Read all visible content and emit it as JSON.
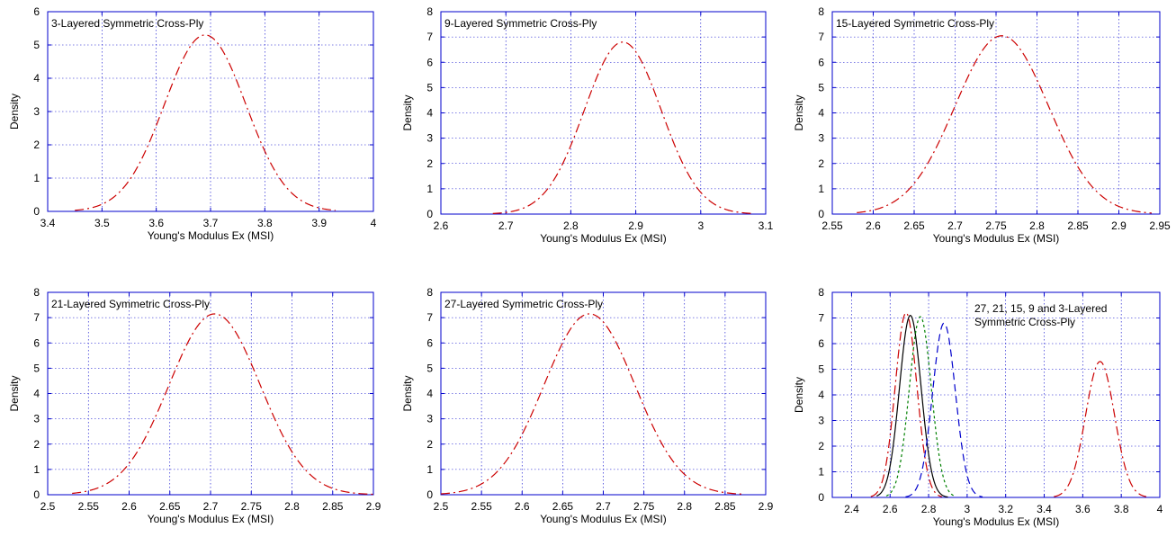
{
  "chart_data": [
    {
      "type": "line",
      "annotation": [
        "3-Layered Symmetric Cross-Ply"
      ],
      "xlabel": "Young's Modulus Ex (MSI)",
      "ylabel": "Density",
      "xlim": [
        3.4,
        4.0
      ],
      "ylim": [
        0,
        6
      ],
      "xticks": [
        "3.4",
        "3.5",
        "3.6",
        "3.7",
        "3.8",
        "3.9",
        "4"
      ],
      "yticks": [
        "0",
        "1",
        "2",
        "3",
        "4",
        "5",
        "6"
      ],
      "grid": true,
      "series": [
        {
          "color": "#cc0000",
          "dash": "10,4,2,4",
          "mean": 3.69,
          "peak": 5.3,
          "sd": 0.075,
          "range": [
            3.45,
            3.93
          ]
        }
      ]
    },
    {
      "type": "line",
      "annotation": [
        "9-Layered Symmetric Cross-Ply"
      ],
      "xlabel": "Young's Modulus Ex (MSI)",
      "ylabel": "Density",
      "xlim": [
        2.6,
        3.1
      ],
      "ylim": [
        0,
        8
      ],
      "xticks": [
        "2.6",
        "2.7",
        "2.8",
        "2.9",
        "3",
        "3.1"
      ],
      "yticks": [
        "0",
        "1",
        "2",
        "3",
        "4",
        "5",
        "6",
        "7",
        "8"
      ],
      "grid": true,
      "series": [
        {
          "color": "#cc0000",
          "dash": "10,4,2,4",
          "mean": 2.88,
          "peak": 6.8,
          "sd": 0.059,
          "range": [
            2.68,
            3.08
          ]
        }
      ]
    },
    {
      "type": "line",
      "annotation": [
        "15-Layered Symmetric Cross-Ply"
      ],
      "xlabel": "Young's Modulus Ex (MSI)",
      "ylabel": "Density",
      "xlim": [
        2.55,
        2.95
      ],
      "ylim": [
        0,
        8
      ],
      "xticks": [
        "2.55",
        "2.6",
        "2.65",
        "2.7",
        "2.75",
        "2.8",
        "2.85",
        "2.9",
        "2.95"
      ],
      "yticks": [
        "0",
        "1",
        "2",
        "3",
        "4",
        "5",
        "6",
        "7",
        "8"
      ],
      "grid": true,
      "series": [
        {
          "color": "#cc0000",
          "dash": "10,4,2,4",
          "mean": 2.757,
          "peak": 7.05,
          "sd": 0.057,
          "range": [
            2.58,
            2.94
          ]
        }
      ]
    },
    {
      "type": "line",
      "annotation": [
        "21-Layered Symmetric Cross-Ply"
      ],
      "xlabel": "Young's Modulus Ex (MSI)",
      "ylabel": "Density",
      "xlim": [
        2.5,
        2.9
      ],
      "ylim": [
        0,
        8
      ],
      "xticks": [
        "2.5",
        "2.55",
        "2.6",
        "2.65",
        "2.7",
        "2.75",
        "2.8",
        "2.85",
        "2.9"
      ],
      "yticks": [
        "0",
        "1",
        "2",
        "3",
        "4",
        "5",
        "6",
        "7",
        "8"
      ],
      "grid": true,
      "series": [
        {
          "color": "#cc0000",
          "dash": "10,4,2,4",
          "mean": 2.705,
          "peak": 7.15,
          "sd": 0.056,
          "range": [
            2.53,
            2.9
          ]
        }
      ]
    },
    {
      "type": "line",
      "annotation": [
        "27-Layered Symmetric Cross-Ply"
      ],
      "xlabel": "Young's Modulus Ex (MSI)",
      "ylabel": "Density",
      "xlim": [
        2.5,
        2.9
      ],
      "ylim": [
        0,
        8
      ],
      "xticks": [
        "2.5",
        "2.55",
        "2.6",
        "2.65",
        "2.7",
        "2.75",
        "2.8",
        "2.85",
        "2.9"
      ],
      "yticks": [
        "0",
        "1",
        "2",
        "3",
        "4",
        "5",
        "6",
        "7",
        "8"
      ],
      "grid": true,
      "series": [
        {
          "color": "#cc0000",
          "dash": "10,4,2,4",
          "mean": 2.683,
          "peak": 7.15,
          "sd": 0.056,
          "range": [
            2.5,
            2.87
          ]
        }
      ]
    },
    {
      "type": "line",
      "annotation": [
        "27, 21, 15, 9 and 3-Layered",
        "Symmetric Cross-Ply"
      ],
      "xlabel": "Young's Modulus Ex (MSI)",
      "ylabel": "Density",
      "xlim": [
        2.3,
        4.0
      ],
      "ylim": [
        0,
        8
      ],
      "xticks": [
        "2.4",
        "2.6",
        "2.8",
        "3",
        "3.2",
        "3.4",
        "3.6",
        "3.8",
        "4"
      ],
      "yticks": [
        "0",
        "1",
        "2",
        "3",
        "4",
        "5",
        "6",
        "7",
        "8"
      ],
      "grid": true,
      "series": [
        {
          "color": "#cc0000",
          "dash": "10,4,2,4",
          "mean": 2.683,
          "peak": 7.2,
          "sd": 0.056,
          "range": [
            2.5,
            2.87
          ]
        },
        {
          "color": "#000000",
          "dash": "",
          "mean": 2.705,
          "peak": 7.1,
          "sd": 0.056,
          "range": [
            2.53,
            2.9
          ]
        },
        {
          "color": "#008000",
          "dash": "3,3",
          "mean": 2.757,
          "peak": 7.05,
          "sd": 0.057,
          "range": [
            2.58,
            2.94
          ]
        },
        {
          "color": "#0000cc",
          "dash": "8,5",
          "mean": 2.88,
          "peak": 6.8,
          "sd": 0.059,
          "range": [
            2.68,
            3.08
          ]
        },
        {
          "color": "#cc0000",
          "dash": "10,4,2,4",
          "mean": 3.69,
          "peak": 5.3,
          "sd": 0.075,
          "range": [
            3.45,
            3.93
          ]
        }
      ]
    }
  ]
}
